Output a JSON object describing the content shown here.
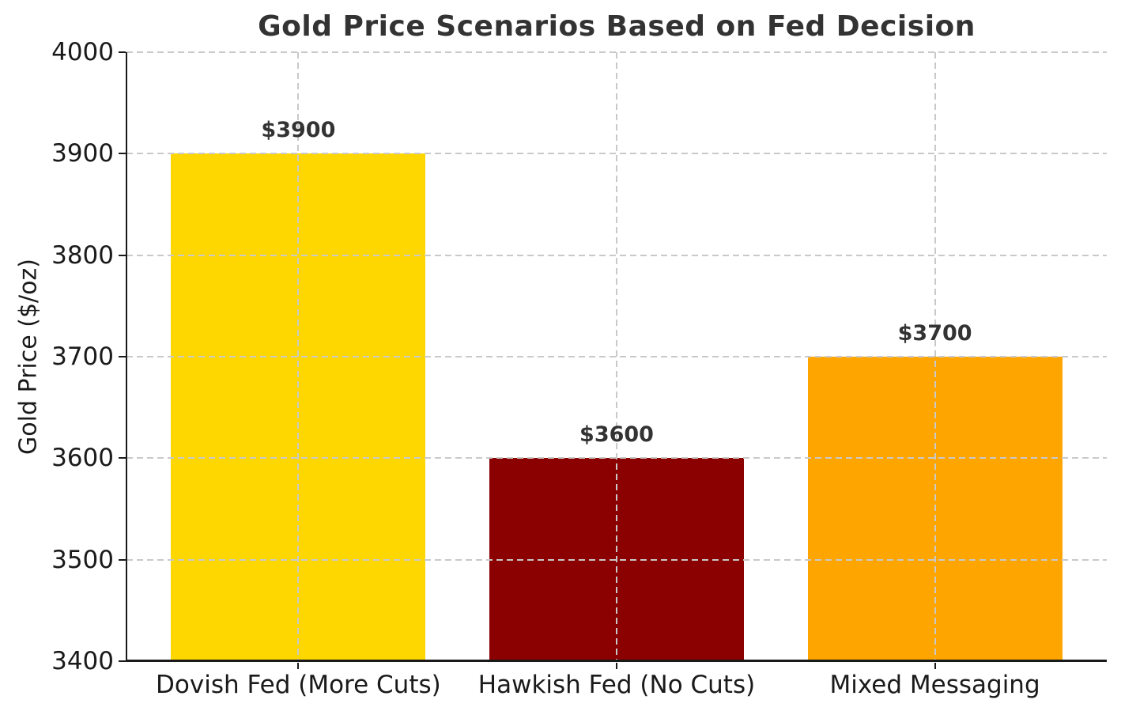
{
  "chart_data": {
    "type": "bar",
    "title": "Gold Price Scenarios Based on Fed Decision",
    "xlabel": "",
    "ylabel": "Gold Price ($/oz)",
    "categories": [
      "Dovish Fed (More Cuts)",
      "Hawkish Fed (No Cuts)",
      "Mixed Messaging"
    ],
    "values": [
      3900,
      3600,
      3700
    ],
    "bar_labels": [
      "$3900",
      "$3600",
      "$3700"
    ],
    "bar_colors": [
      "#FFD700",
      "#8B0000",
      "#FFA500"
    ],
    "ylim": [
      3400,
      4000
    ],
    "y_ticks": [
      3400,
      3500,
      3600,
      3700,
      3800,
      3900,
      4000
    ],
    "grid": "dashed light-gray gridlines on both axes, drawn above bars",
    "legend": "none",
    "spines": "left and bottom only",
    "colors": {
      "grid": "#c9c9c9",
      "axis": "#1a1a1a",
      "title_text": "#333333",
      "value_label_text": "#333333",
      "background": "#ffffff"
    }
  }
}
